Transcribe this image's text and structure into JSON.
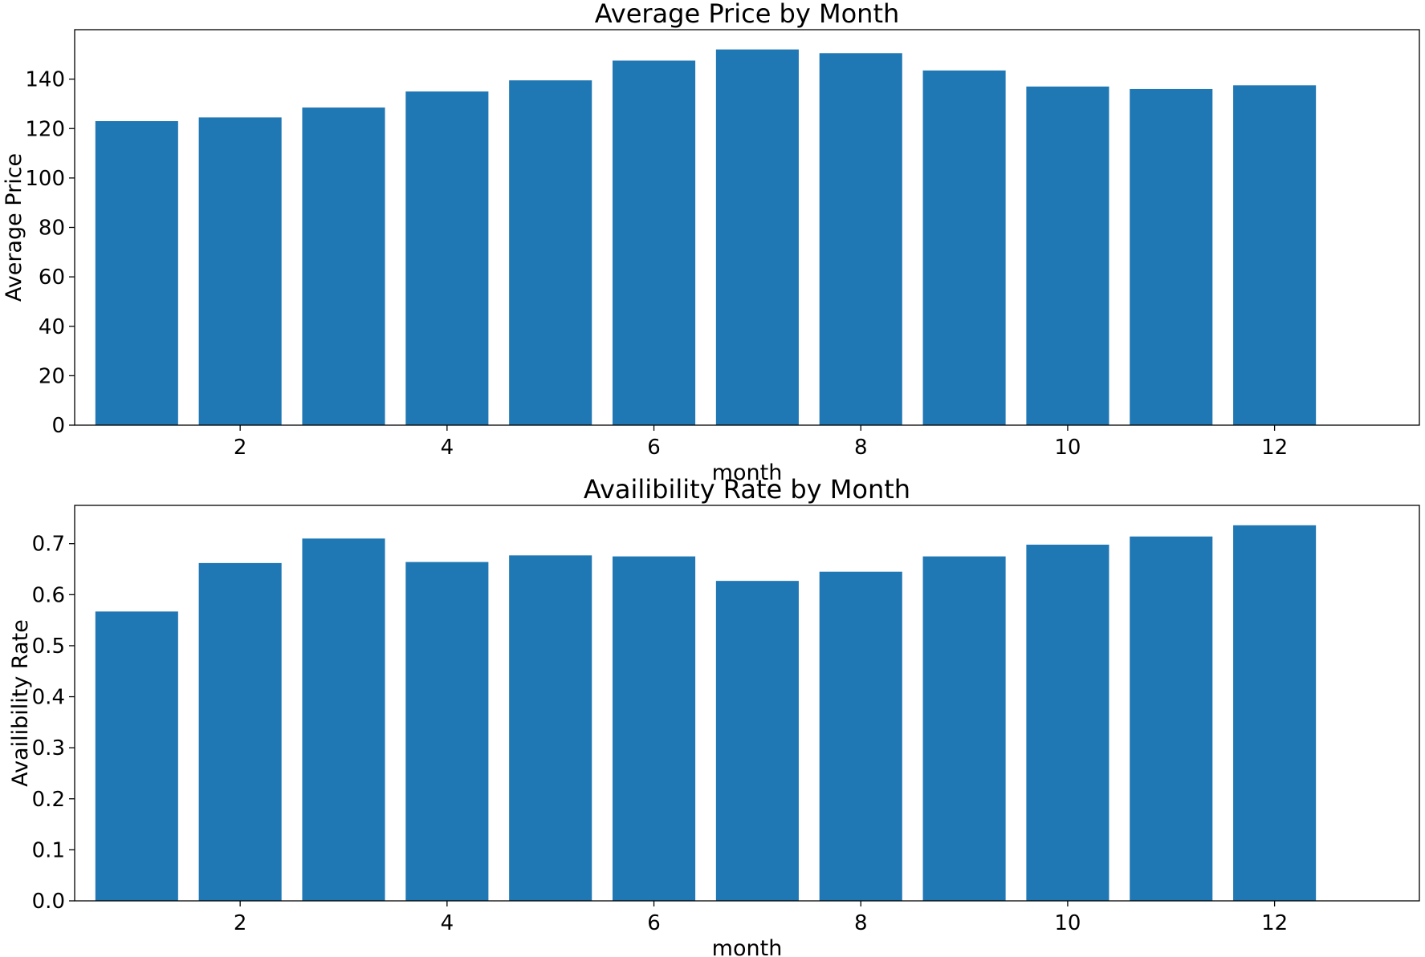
{
  "chart_data": [
    {
      "type": "bar",
      "title": "Average Price by Month",
      "xlabel": "month",
      "ylabel": "Average Price",
      "color": "#1f77b4",
      "x": [
        1,
        2,
        3,
        4,
        5,
        6,
        7,
        8,
        9,
        10,
        11,
        12
      ],
      "values": [
        123,
        124.5,
        128.5,
        135,
        139.5,
        147.5,
        152,
        150.5,
        143.5,
        137,
        136,
        137.5
      ],
      "xlim": [
        0.4,
        13.4
      ],
      "ylim": [
        0,
        160
      ],
      "xticks": [
        "2",
        "4",
        "6",
        "8",
        "10",
        "12"
      ],
      "yticks": [
        "0",
        "20",
        "40",
        "60",
        "80",
        "100",
        "120",
        "140"
      ],
      "grid": false
    },
    {
      "type": "bar",
      "title": "Availibility Rate by Month",
      "xlabel": "month",
      "ylabel": "Availibility Rate",
      "color": "#1f77b4",
      "x": [
        1,
        2,
        3,
        4,
        5,
        6,
        7,
        8,
        9,
        10,
        11,
        12
      ],
      "values": [
        0.567,
        0.662,
        0.71,
        0.664,
        0.677,
        0.675,
        0.627,
        0.645,
        0.675,
        0.698,
        0.714,
        0.736
      ],
      "xlim": [
        0.4,
        13.4
      ],
      "ylim": [
        0,
        0.775
      ],
      "xticks": [
        "2",
        "4",
        "6",
        "8",
        "10",
        "12"
      ],
      "yticks": [
        "0.0",
        "0.1",
        "0.2",
        "0.3",
        "0.4",
        "0.5",
        "0.6",
        "0.7"
      ],
      "grid": false
    }
  ]
}
